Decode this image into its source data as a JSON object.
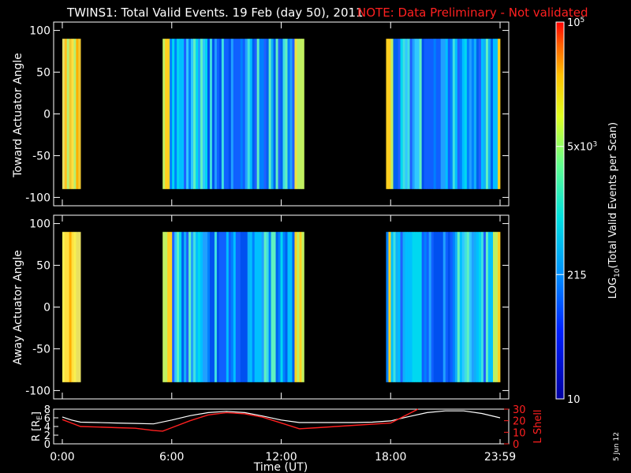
{
  "title": "TWINS1: Total Valid Events. 19 Feb (day  50), 2011",
  "note": "NOTE: Data Preliminary - Not validated",
  "stamp": "5 Jun 12",
  "colors": {
    "background": "#000000",
    "axes": "#ffffff",
    "note": "#ff2020",
    "lshell": "#ff2020",
    "radius": "#ffffff"
  },
  "chart_data": [
    {
      "type": "heatmap",
      "ylabel": "Toward Actuator Angle",
      "xlim": [
        0,
        24
      ],
      "ylim": [
        -110,
        110
      ],
      "yticks": [
        "100",
        "50",
        "0",
        "-50",
        "-100"
      ],
      "data_y_range": [
        -90,
        90
      ],
      "colormap": "rainbow",
      "intervals_hours": [
        [
          0.0,
          1.0,
          "yellow-orange"
        ],
        [
          5.5,
          13.25,
          "cyan-blue"
        ],
        [
          17.75,
          24.0,
          "cyan-blue"
        ]
      ]
    },
    {
      "type": "heatmap",
      "ylabel": "Away Actuator Angle",
      "xlim": [
        0,
        24
      ],
      "ylim": [
        -110,
        110
      ],
      "yticks": [
        "100",
        "50",
        "0",
        "-50",
        "-100"
      ],
      "data_y_range": [
        -90,
        90
      ],
      "colormap": "rainbow",
      "intervals_hours": [
        [
          0.0,
          1.0,
          "orange-yellow"
        ],
        [
          5.5,
          13.25,
          "cyan-blue"
        ],
        [
          17.75,
          24.0,
          "cyan-blue"
        ]
      ]
    },
    {
      "type": "line",
      "xlabel": "Time (UT)",
      "xticks": [
        "0:00",
        "6:00",
        "12:00",
        "18:00",
        "23:59"
      ],
      "xlim": [
        0,
        24
      ],
      "ylabel_left": "R [RE]",
      "ylabel_left_sub": "E",
      "ylim_left": [
        0,
        8
      ],
      "yticks_left": [
        "8",
        "6",
        "4",
        "2",
        "0"
      ],
      "ylabel_right": "L Shell",
      "ylim_right": [
        0,
        30
      ],
      "yticks_right": [
        "30",
        "20",
        "10",
        "0"
      ],
      "series": [
        {
          "name": "R [RE]",
          "axis": "left",
          "x": [
            0,
            0.5,
            1,
            2,
            3,
            4,
            5,
            6,
            7,
            8,
            9,
            10,
            11,
            12,
            13,
            14,
            15,
            16,
            17,
            18,
            19,
            20,
            21,
            22,
            23,
            24
          ],
          "values": [
            6.2,
            5.5,
            5.0,
            4.9,
            4.8,
            4.7,
            4.6,
            5.5,
            6.5,
            7.2,
            7.5,
            7.2,
            6.4,
            5.5,
            4.9,
            4.9,
            4.9,
            4.9,
            5.0,
            5.3,
            6.3,
            7.2,
            7.6,
            7.6,
            7.0,
            6.0
          ]
        },
        {
          "name": "L Shell",
          "axis": "right",
          "x": [
            0,
            0.5,
            1,
            2,
            3,
            4,
            5,
            5.5,
            6,
            7,
            8,
            9,
            10,
            11,
            12,
            13,
            14,
            15,
            16,
            17,
            18,
            19,
            19.5
          ],
          "values": [
            21,
            18,
            15,
            14.5,
            14,
            13.5,
            11.5,
            11,
            14,
            20,
            25,
            27,
            26,
            23,
            18,
            13,
            14,
            15,
            16,
            17,
            18,
            26,
            32
          ]
        }
      ]
    }
  ],
  "colorbar": {
    "label": "LOG10(Total Valid Events per Scan)",
    "label_main": "LOG",
    "label_sub": "10",
    "label_rest": "(Total Valid Events per Scan)",
    "ticks": [
      {
        "text": "10",
        "level": 0.0
      },
      {
        "text": "215",
        "level": 0.33
      },
      {
        "text": "5x10",
        "sup": "3",
        "level": 0.67
      },
      {
        "text": "10",
        "sup": "5",
        "level": 1.0
      }
    ]
  }
}
